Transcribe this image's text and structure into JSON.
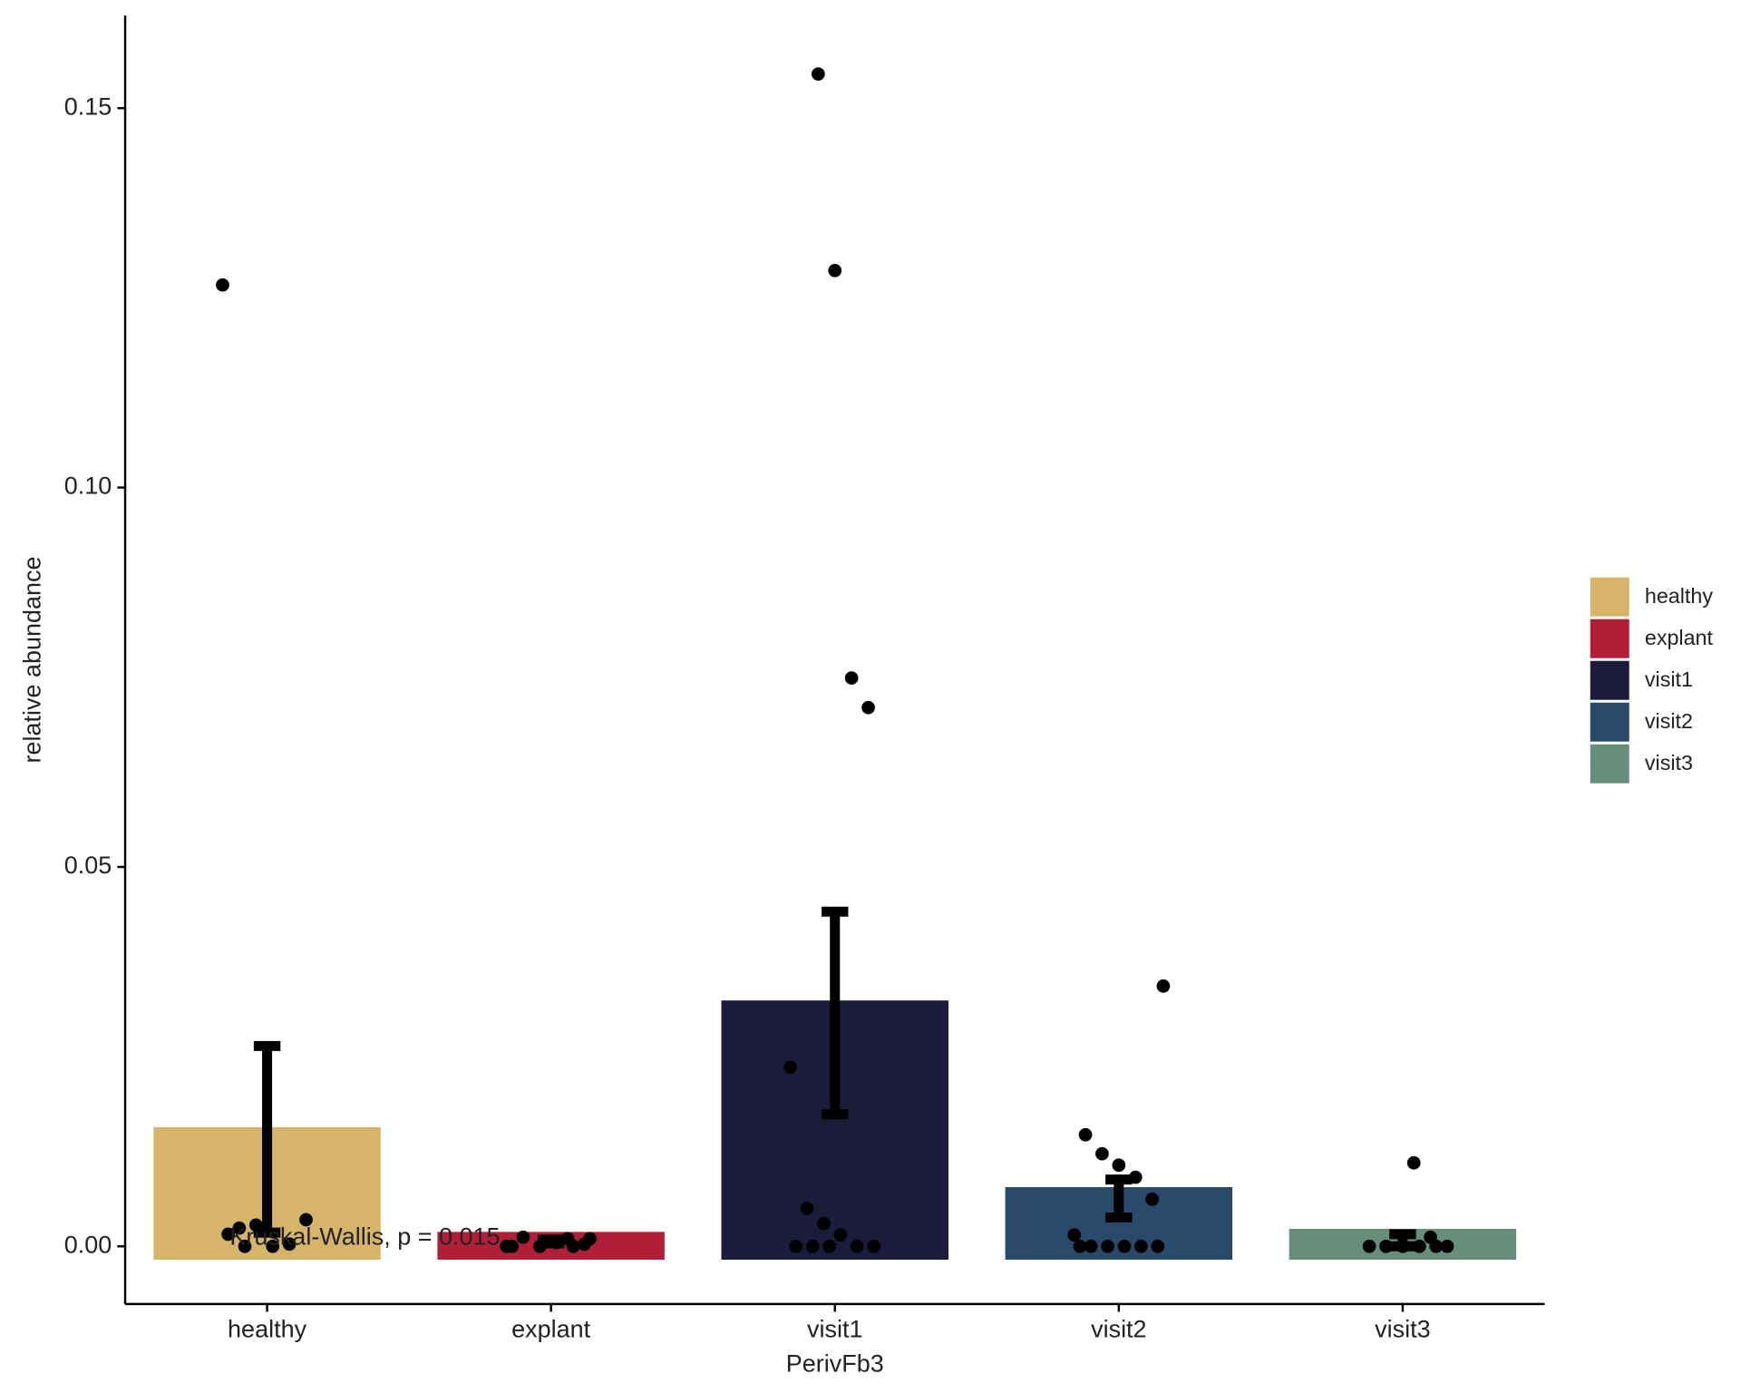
{
  "chart_data": {
    "type": "bar",
    "xlabel": "PerivFb3",
    "ylabel": "relative abundance",
    "categories": [
      "healthy",
      "explant",
      "visit1",
      "visit2",
      "visit3"
    ],
    "values": [
      0.0157,
      0.0019,
      0.0324,
      0.0078,
      0.0023
    ],
    "colors": [
      "#d6b56b",
      "#b01e38",
      "#1b1c3a",
      "#294a6b",
      "#678e7a"
    ],
    "error_low": [
      0.0018,
      0.0004,
      0.0174,
      0.0038,
      0.0
    ],
    "error_high": [
      0.0264,
      0.0009,
      0.0441,
      0.0088,
      0.0016
    ],
    "points": [
      [
        0.1267,
        0.0024,
        0.0028,
        0.0,
        0.0003,
        0.0035,
        0.0016,
        0.0
      ],
      [
        0.001,
        0.0003,
        0.0,
        0.0012,
        0.0,
        0.0005,
        0.0,
        0.001,
        0.0
      ],
      [
        0.1545,
        0.1286,
        0.0749,
        0.071,
        0.0236,
        0.005,
        0.003,
        0.0015,
        0.0,
        0.0,
        0.0,
        0.0,
        0.0
      ],
      [
        0.0343,
        0.0147,
        0.0122,
        0.0107,
        0.0091,
        0.0062,
        0.0015,
        0.0,
        0.0,
        0.0,
        0.0,
        0.0,
        0.0
      ],
      [
        0.011,
        0.0012,
        0.0,
        0.0,
        0.0,
        0.0,
        0.0,
        0.0
      ]
    ],
    "annotation": "Kruskal-Wallis, p = 0.015",
    "ylim": [
      -0.0076,
      0.1622
    ],
    "yticks": [
      {
        "value": 0,
        "label": "0.00"
      },
      {
        "value": 0.05,
        "label": "0.05"
      },
      {
        "value": 0.1,
        "label": "0.10"
      },
      {
        "value": 0.15,
        "label": "0.15"
      }
    ],
    "legend": "right"
  }
}
